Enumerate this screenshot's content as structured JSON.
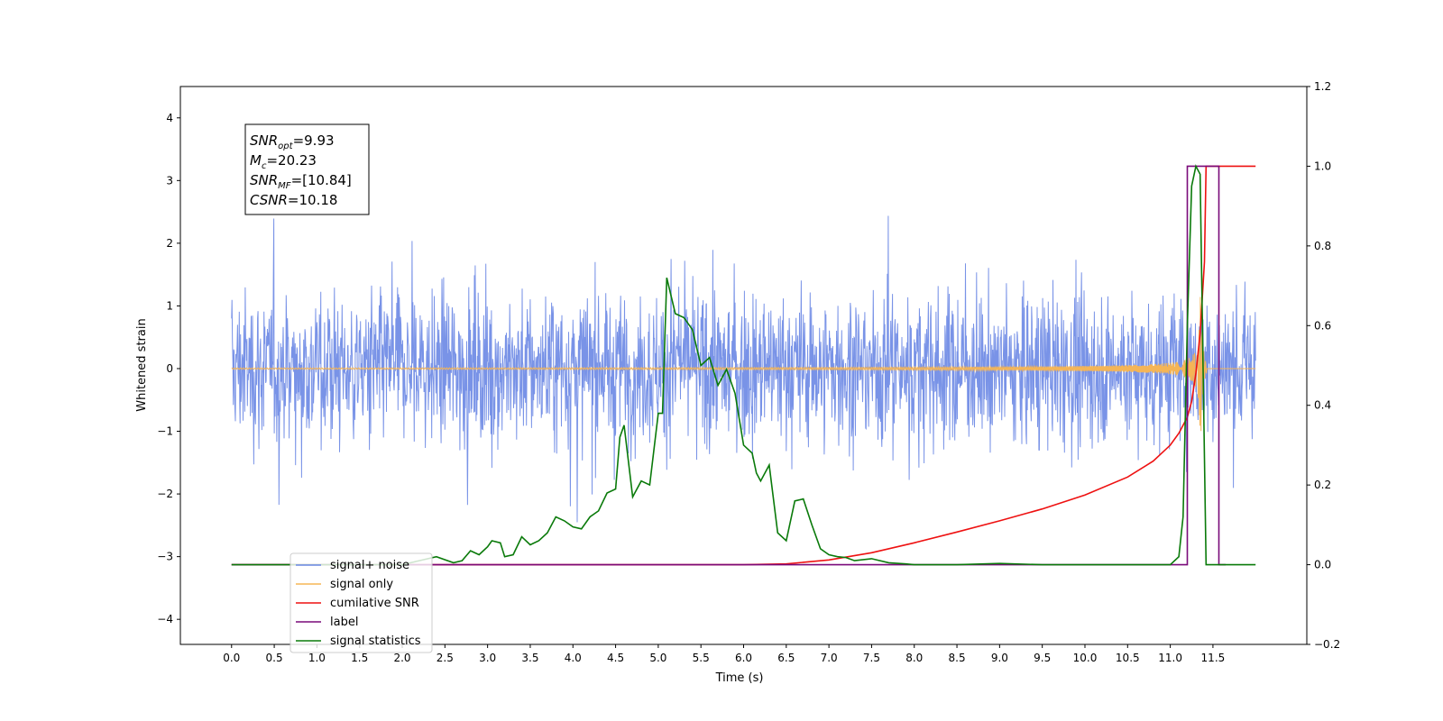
{
  "chart_data": {
    "type": "line",
    "xlabel": "Time (s)",
    "ylabel": "Whitened strain",
    "xlim": [
      -0.6,
      12.6
    ],
    "ylim": [
      -4.4,
      4.5
    ],
    "ylim_right": [
      -0.2,
      1.2
    ],
    "x_ticks": [
      0.0,
      0.5,
      1.0,
      1.5,
      2.0,
      2.5,
      3.0,
      3.5,
      4.0,
      4.5,
      5.0,
      5.5,
      6.0,
      6.5,
      7.0,
      7.5,
      8.0,
      8.5,
      9.0,
      9.5,
      10.0,
      10.5,
      11.0,
      11.5
    ],
    "x_tick_labels": [
      "0.0",
      "0.5",
      "1.0",
      "1.5",
      "2.0",
      "2.5",
      "3.0",
      "3.5",
      "4.0",
      "4.5",
      "5.0",
      "5.5",
      "6.0",
      "6.5",
      "7.0",
      "7.5",
      "8.0",
      "8.5",
      "9.0",
      "9.5",
      "10.0",
      "10.5",
      "11.0",
      "11.5"
    ],
    "y_ticks_left": [
      -4,
      -3,
      -2,
      -1,
      0,
      1,
      2,
      3,
      4
    ],
    "y_tick_labels_left": [
      "−4",
      "−3",
      "−2",
      "−1",
      "0",
      "1",
      "2",
      "3",
      "4"
    ],
    "y_ticks_right": [
      -0.2,
      0.0,
      0.2,
      0.4,
      0.6,
      0.8,
      1.0,
      1.2
    ],
    "y_tick_labels_right": [
      "−0.2",
      "0.0",
      "0.2",
      "0.4",
      "0.6",
      "0.8",
      "1.0",
      "1.2"
    ],
    "grid": false,
    "legend_position": "lower-left",
    "annotation": {
      "lines": [
        {
          "sym": "SNR",
          "sub": "opt",
          "value": "=9.93"
        },
        {
          "sym": "M",
          "sub": "c",
          "value": "=20.23"
        },
        {
          "sym": "SNR",
          "sub": "MF",
          "value": "=[10.84]"
        },
        {
          "sym": "CSNR",
          "sub": "",
          "value": "=10.18"
        }
      ]
    },
    "colors": {
      "noise": "#6a87e4",
      "signal": "#f5b556",
      "snr": "#ee1111",
      "label": "#7a0a7a",
      "stats": "#0a7a0a"
    },
    "series": [
      {
        "name": "signal+ noise",
        "axis": "left",
        "style": "noise",
        "x_range": [
          0.0,
          12.0
        ],
        "amplitude_range": [
          -4.0,
          4.1
        ]
      },
      {
        "name": "signal only",
        "axis": "left",
        "style": "chirp",
        "x_range": [
          0.0,
          12.0
        ],
        "merger_time": 11.35
      },
      {
        "name": "cumilative SNR",
        "axis": "right",
        "x": [
          0.0,
          6.0,
          6.5,
          7.0,
          7.5,
          8.0,
          8.5,
          9.0,
          9.5,
          10.0,
          10.5,
          10.8,
          11.0,
          11.1,
          11.2,
          11.25,
          11.3,
          11.35,
          11.4,
          11.42,
          12.0
        ],
        "y": [
          0.0,
          0.0,
          0.002,
          0.012,
          0.03,
          0.055,
          0.082,
          0.11,
          0.14,
          0.175,
          0.22,
          0.26,
          0.3,
          0.33,
          0.37,
          0.41,
          0.48,
          0.58,
          0.76,
          1.0,
          1.0
        ]
      },
      {
        "name": "label",
        "axis": "right",
        "x": [
          0.0,
          11.2,
          11.2,
          11.57,
          11.57,
          11.65
        ],
        "y": [
          0.0,
          0.0,
          1.0,
          1.0,
          0.0,
          0.0
        ]
      },
      {
        "name": "signal statistics",
        "axis": "right",
        "x": [
          0.0,
          0.5,
          1.0,
          1.5,
          2.0,
          2.2,
          2.4,
          2.6,
          2.7,
          2.8,
          2.9,
          3.0,
          3.05,
          3.15,
          3.2,
          3.3,
          3.4,
          3.5,
          3.6,
          3.7,
          3.8,
          3.9,
          4.0,
          4.1,
          4.2,
          4.3,
          4.4,
          4.5,
          4.55,
          4.6,
          4.7,
          4.8,
          4.9,
          5.0,
          5.05,
          5.1,
          5.2,
          5.3,
          5.4,
          5.5,
          5.6,
          5.7,
          5.75,
          5.8,
          5.9,
          6.0,
          6.05,
          6.1,
          6.15,
          6.2,
          6.3,
          6.4,
          6.5,
          6.6,
          6.7,
          6.8,
          6.9,
          7.0,
          7.1,
          7.2,
          7.3,
          7.5,
          7.7,
          7.9,
          8.0,
          8.5,
          9.0,
          9.5,
          10.0,
          10.5,
          11.0,
          11.1,
          11.15,
          11.2,
          11.25,
          11.3,
          11.35,
          11.42,
          11.5,
          12.0
        ],
        "y": [
          0.0,
          0.0,
          0.0,
          0.0,
          0.0,
          0.01,
          0.02,
          0.005,
          0.01,
          0.035,
          0.025,
          0.045,
          0.06,
          0.055,
          0.02,
          0.025,
          0.07,
          0.05,
          0.06,
          0.08,
          0.12,
          0.11,
          0.095,
          0.09,
          0.12,
          0.135,
          0.18,
          0.19,
          0.32,
          0.35,
          0.17,
          0.21,
          0.2,
          0.38,
          0.38,
          0.72,
          0.63,
          0.62,
          0.59,
          0.5,
          0.52,
          0.45,
          0.47,
          0.49,
          0.43,
          0.3,
          0.29,
          0.28,
          0.23,
          0.21,
          0.25,
          0.08,
          0.06,
          0.16,
          0.165,
          0.1,
          0.04,
          0.025,
          0.02,
          0.018,
          0.01,
          0.015,
          0.005,
          0.002,
          0.0,
          0.0,
          0.003,
          0.0,
          0.0,
          0.0,
          0.0,
          0.02,
          0.12,
          0.6,
          0.95,
          1.0,
          0.98,
          0.0,
          0.0,
          0.0
        ]
      }
    ]
  }
}
